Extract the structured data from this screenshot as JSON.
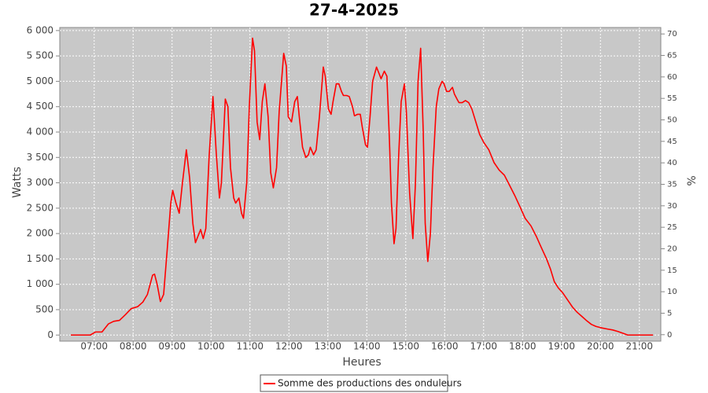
{
  "chart_data": {
    "type": "line",
    "title": "27-4-2025",
    "x_label": "Heures",
    "y_label": "Watts",
    "y2_label": "%",
    "x": [
      "06:24",
      "06:54",
      "07:02",
      "07:12",
      "07:22",
      "07:30",
      "07:39",
      "07:48",
      "07:57",
      "08:07",
      "08:15",
      "08:22",
      "08:30",
      "08:33",
      "08:37",
      "08:42",
      "08:47",
      "08:52",
      "08:58",
      "09:01",
      "09:06",
      "09:11",
      "09:16",
      "09:22",
      "09:27",
      "09:32",
      "09:36",
      "09:40",
      "09:44",
      "09:48",
      "09:52",
      "09:57",
      "10:03",
      "10:08",
      "10:13",
      "10:16",
      "10:22",
      "10:26",
      "10:30",
      "10:35",
      "10:38",
      "10:43",
      "10:47",
      "10:50",
      "10:55",
      "10:59",
      "11:04",
      "11:07",
      "11:11",
      "11:15",
      "11:19",
      "11:23",
      "11:28",
      "11:32",
      "11:36",
      "11:41",
      "11:45",
      "11:52",
      "11:56",
      "11:59",
      "12:04",
      "12:09",
      "12:13",
      "12:16",
      "12:21",
      "12:26",
      "12:30",
      "12:33",
      "12:38",
      "12:42",
      "12:47",
      "12:53",
      "12:56",
      "13:01",
      "13:05",
      "13:08",
      "13:13",
      "13:17",
      "13:21",
      "13:24",
      "13:29",
      "13:33",
      "13:38",
      "13:41",
      "13:46",
      "13:50",
      "13:53",
      "13:58",
      "14:01",
      "14:05",
      "14:09",
      "14:15",
      "14:19",
      "14:22",
      "14:27",
      "14:31",
      "14:35",
      "14:38",
      "14:42",
      "14:45",
      "14:49",
      "14:53",
      "14:58",
      "15:01",
      "15:06",
      "15:11",
      "15:15",
      "15:19",
      "15:23",
      "15:27",
      "15:30",
      "15:34",
      "15:38",
      "15:42",
      "15:47",
      "15:51",
      "15:56",
      "15:59",
      "16:03",
      "16:07",
      "16:12",
      "16:15",
      "16:19",
      "16:22",
      "16:27",
      "16:32",
      "16:37",
      "16:42",
      "16:48",
      "16:54",
      "17:00",
      "17:08",
      "17:16",
      "17:24",
      "17:32",
      "17:40",
      "17:48",
      "17:57",
      "18:04",
      "18:13",
      "18:21",
      "18:28",
      "18:37",
      "18:43",
      "18:49",
      "18:55",
      "19:02",
      "19:10",
      "19:17",
      "19:24",
      "19:32",
      "19:39",
      "19:46",
      "19:53",
      "20:02",
      "20:10",
      "20:19",
      "20:27",
      "20:36",
      "20:42",
      "21:21"
    ],
    "series": [
      {
        "name": "Somme des productions des onduleurs",
        "color": "#ff0000",
        "values": [
          0,
          0,
          60,
          60,
          220,
          270,
          290,
          400,
          520,
          560,
          650,
          800,
          1180,
          1200,
          1000,
          660,
          800,
          1600,
          2600,
          2850,
          2600,
          2400,
          3000,
          3650,
          3100,
          2200,
          1820,
          1950,
          2080,
          1900,
          2100,
          3500,
          4700,
          3600,
          2700,
          3000,
          4650,
          4500,
          3300,
          2700,
          2600,
          2700,
          2400,
          2300,
          3000,
          4500,
          5850,
          5600,
          4200,
          3850,
          4600,
          4950,
          4300,
          3200,
          2900,
          3300,
          4400,
          5550,
          5300,
          4300,
          4200,
          4600,
          4700,
          4300,
          3700,
          3500,
          3550,
          3700,
          3550,
          3650,
          4300,
          5280,
          5100,
          4450,
          4350,
          4600,
          4950,
          4950,
          4800,
          4720,
          4720,
          4700,
          4500,
          4320,
          4350,
          4350,
          4100,
          3750,
          3700,
          4300,
          5000,
          5280,
          5150,
          5050,
          5200,
          5100,
          3800,
          2600,
          1800,
          2100,
          3500,
          4600,
          4950,
          4400,
          2800,
          1900,
          3000,
          5000,
          5650,
          4000,
          2200,
          1450,
          2000,
          3300,
          4500,
          4850,
          5000,
          4950,
          4800,
          4800,
          4880,
          4750,
          4650,
          4580,
          4580,
          4620,
          4580,
          4450,
          4200,
          3950,
          3800,
          3650,
          3400,
          3250,
          3150,
          2950,
          2750,
          2500,
          2300,
          2150,
          1950,
          1750,
          1500,
          1300,
          1050,
          930,
          830,
          680,
          550,
          450,
          360,
          280,
          210,
          170,
          140,
          120,
          100,
          70,
          30,
          0,
          0
        ]
      }
    ],
    "xlim": [
      "06:07",
      "21:33"
    ],
    "xticks": [
      "07:00",
      "08:00",
      "09:00",
      "10:00",
      "11:00",
      "12:00",
      "13:00",
      "14:00",
      "15:00",
      "16:00",
      "17:00",
      "18:00",
      "19:00",
      "20:00",
      "21:00"
    ],
    "ylim": [
      -120,
      6060
    ],
    "yticks": [
      0,
      500,
      {
        "value": 1000,
        "label": "1 000"
      },
      {
        "value": 1500,
        "label": "1 500"
      },
      {
        "value": 2000,
        "label": "2 000"
      },
      {
        "value": 2500,
        "label": "2 500"
      },
      {
        "value": 3000,
        "label": "3 000"
      },
      {
        "value": 3500,
        "label": "3 500"
      },
      {
        "value": 4000,
        "label": "4 000"
      },
      {
        "value": 4500,
        "label": "4 500"
      },
      {
        "value": 5000,
        "label": "5 000"
      },
      {
        "value": 5500,
        "label": "5 500"
      },
      {
        "value": 6000,
        "label": "6 000"
      }
    ],
    "y2lim": [
      -1.5,
      71.5
    ],
    "y2ticks": [
      0,
      5,
      10,
      15,
      20,
      25,
      30,
      35,
      40,
      45,
      50,
      55,
      60,
      65,
      70
    ],
    "grid": true
  }
}
